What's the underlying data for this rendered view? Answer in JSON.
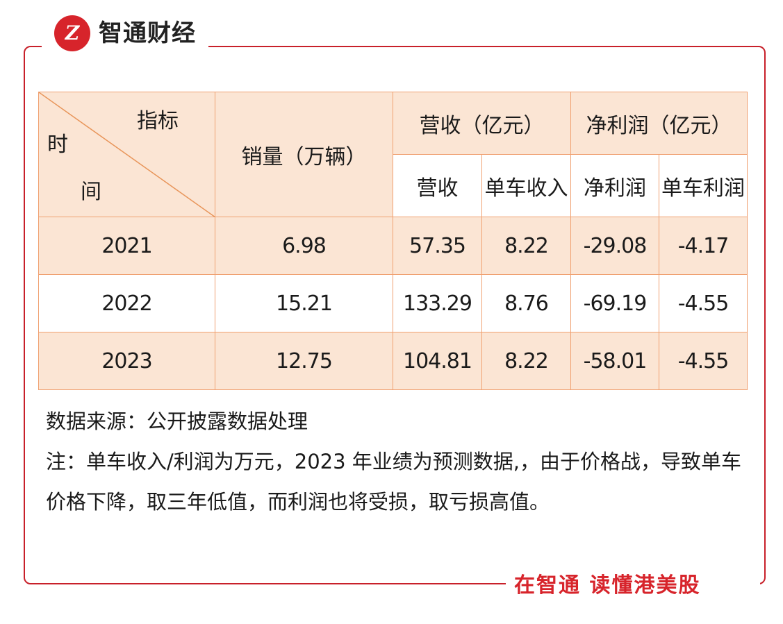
{
  "brand": {
    "logo_mark": "Z",
    "name": "智通财经",
    "slogan": "在智通 读懂港美股"
  },
  "colors": {
    "brand_red": "#d7242b",
    "header_fill": "#fbe5d4",
    "border": "#f0a070"
  },
  "table": {
    "corner": {
      "top_right": "指标",
      "bottom_left_1": "时",
      "bottom_left_2": "间"
    },
    "headers": {
      "sales": "销量（万辆）",
      "revenue_group": "营收（亿元）",
      "net_profit_group": "净利润（亿元）",
      "revenue": "营收",
      "revenue_per_car": "单车收入",
      "net_profit": "净利润",
      "profit_per_car": "单车利润"
    },
    "rows": [
      {
        "year": "2021",
        "sales": "6.98",
        "revenue": "57.35",
        "revenue_per_car": "8.22",
        "net_profit": "-29.08",
        "profit_per_car": "-4.17"
      },
      {
        "year": "2022",
        "sales": "15.21",
        "revenue": "133.29",
        "revenue_per_car": "8.76",
        "net_profit": "-69.19",
        "profit_per_car": "-4.55"
      },
      {
        "year": "2023",
        "sales": "12.75",
        "revenue": "104.81",
        "revenue_per_car": "8.22",
        "net_profit": "-58.01",
        "profit_per_car": "-4.55"
      }
    ]
  },
  "notes": {
    "source": "数据来源：公开披露数据处理",
    "note": "注：单车收入/利润为万元，2023 年业绩为预测数据,，由于价格战，导致单车价格下降，取三年低值，而利润也将受损，取亏损高值。"
  }
}
